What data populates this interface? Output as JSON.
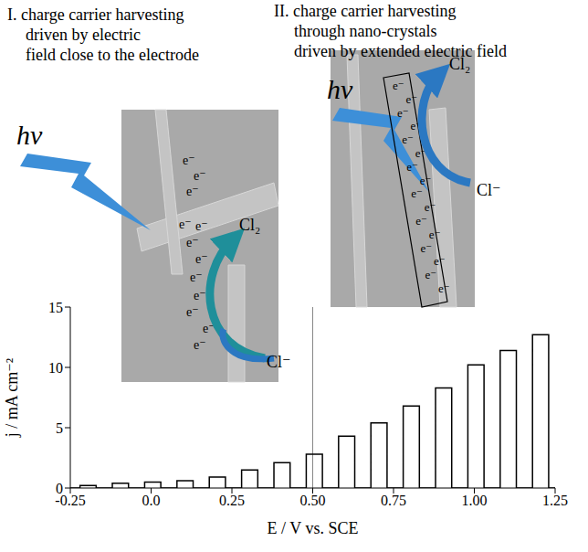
{
  "chart_data": {
    "type": "line",
    "x_label": "E / V vs. SCE",
    "y_label": "j / mA cm⁻²",
    "xlim": [
      -0.25,
      1.25
    ],
    "ylim": [
      0,
      15
    ],
    "xticks": [
      -0.25,
      {
        "value": 0,
        "label": "0.0"
      },
      0.25,
      {
        "value": 0.5,
        "label": "0.50"
      },
      0.75,
      {
        "value": 1,
        "label": "1.00"
      },
      1.25
    ],
    "yticks": [
      0,
      5,
      10,
      15
    ],
    "color": "#000000",
    "divider_x": 0.5,
    "x": [
      -0.25,
      -0.22,
      -0.22,
      -0.17,
      -0.17,
      -0.12,
      -0.12,
      -0.07,
      -0.07,
      -0.02,
      -0.02,
      0.03,
      0.03,
      0.08,
      0.08,
      0.13,
      0.13,
      0.18,
      0.18,
      0.23,
      0.23,
      0.28,
      0.28,
      0.33,
      0.33,
      0.38,
      0.38,
      0.43,
      0.43,
      0.48,
      0.48,
      0.53,
      0.53,
      0.58,
      0.58,
      0.63,
      0.63,
      0.68,
      0.68,
      0.73,
      0.73,
      0.78,
      0.78,
      0.83,
      0.83,
      0.88,
      0.88,
      0.93,
      0.93,
      0.98,
      0.98,
      1.03,
      1.03,
      1.08,
      1.08,
      1.13,
      1.13,
      1.18,
      1.18,
      1.23,
      1.23,
      1.25
    ],
    "values": [
      0,
      0,
      0.2,
      0.2,
      0,
      0,
      0.4,
      0.4,
      0,
      0,
      0.5,
      0.5,
      0,
      0,
      0.6,
      0.6,
      0,
      0,
      0.9,
      0.9,
      0,
      0,
      1.5,
      1.5,
      0,
      0,
      2.1,
      2.1,
      0,
      0,
      2.8,
      2.8,
      0,
      0,
      4.3,
      4.3,
      0,
      0,
      5.4,
      5.4,
      0,
      0,
      6.8,
      6.8,
      0,
      0,
      8.3,
      8.3,
      0,
      0,
      10.2,
      10.2,
      0,
      0,
      11.4,
      11.4,
      0,
      0,
      12.7,
      12.7,
      0,
      0
    ],
    "annotations": {
      "panel_I": [
        "I. charge carrier harvesting",
        "driven by electric",
        "field close to the electrode"
      ],
      "panel_II": [
        "II. charge carrier harvesting",
        "through nano-crystals",
        "driven by extended electric field"
      ],
      "photon": "hν",
      "electron": "e⁻",
      "product": "Cl₂",
      "reactant": "Cl⁻"
    }
  }
}
